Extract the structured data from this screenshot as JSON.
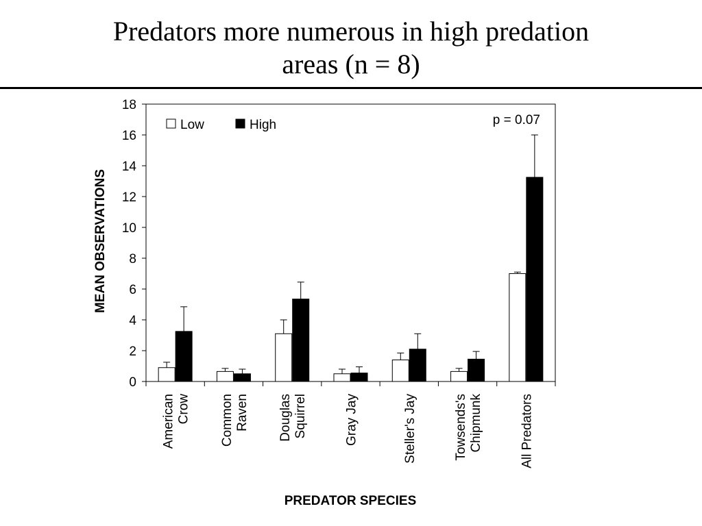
{
  "slide": {
    "title_line1": "Predators more numerous in high predation",
    "title_line2": "areas (n = 8)"
  },
  "chart_data": {
    "type": "bar",
    "title": "",
    "xlabel": "PREDATOR SPECIES",
    "ylabel": "MEAN OBSERVATIONS",
    "ylim": [
      0,
      18
    ],
    "yticks": [
      0,
      2,
      4,
      6,
      8,
      10,
      12,
      14,
      16,
      18
    ],
    "categories": [
      [
        "American",
        "Crow"
      ],
      [
        "Common",
        "Raven"
      ],
      [
        "Douglas",
        "Squirrel"
      ],
      [
        "Gray Jay"
      ],
      [
        "Steller's Jay"
      ],
      [
        "Towsends's",
        "Chipmunk"
      ],
      [
        "All Predators"
      ]
    ],
    "series": [
      {
        "name": "Low",
        "color": "#ffffff",
        "values": [
          0.9,
          0.65,
          3.1,
          0.5,
          1.4,
          0.65,
          7.0
        ],
        "error": [
          0.35,
          0.2,
          0.9,
          0.3,
          0.45,
          0.2,
          0.1
        ]
      },
      {
        "name": "High",
        "color": "#000000",
        "values": [
          3.25,
          0.5,
          5.35,
          0.55,
          2.1,
          1.45,
          13.25
        ],
        "error": [
          1.6,
          0.3,
          1.1,
          0.4,
          1.0,
          0.5,
          2.75
        ]
      }
    ],
    "annotation": "p = 0.07",
    "legend_position": "top-left",
    "grid": false
  }
}
